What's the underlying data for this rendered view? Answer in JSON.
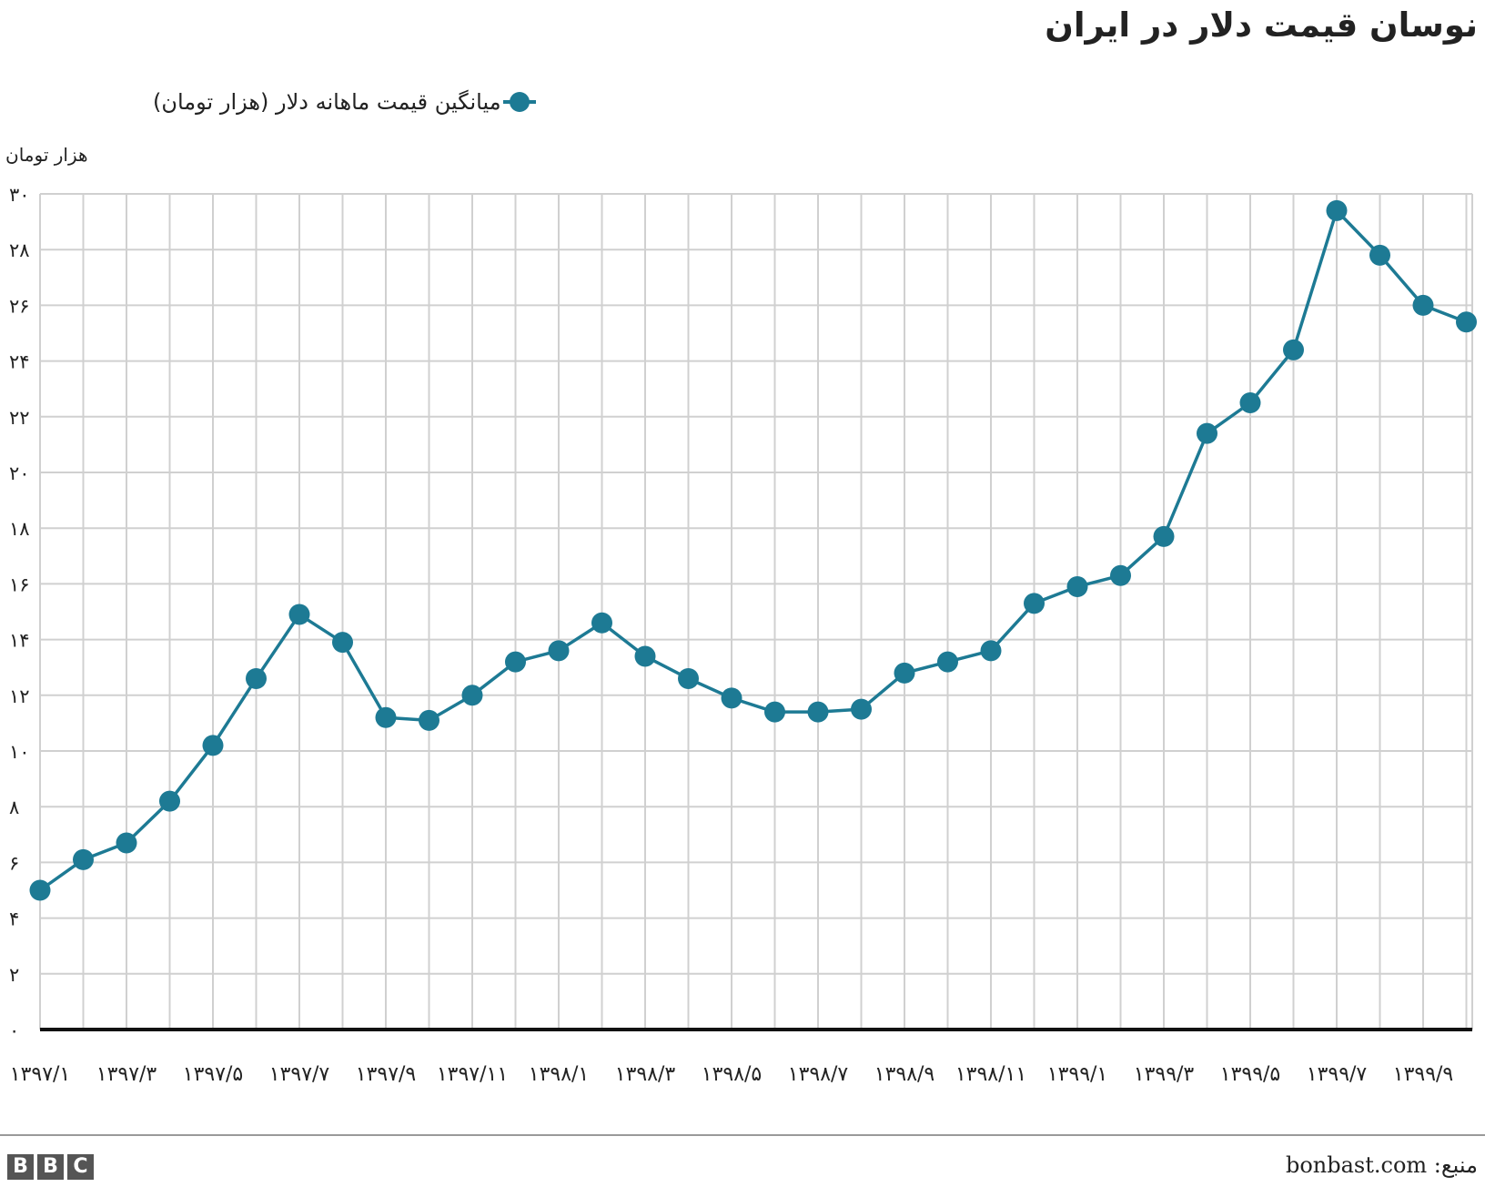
{
  "chart_data": {
    "type": "line",
    "title": "نوسان قیمت دلار در ایران",
    "ylabel": "هزار تومان",
    "xlabel": "",
    "ylim": [
      0,
      30
    ],
    "grid": true,
    "legend_position": "top-left",
    "y_ticks": [
      "۰",
      "۲",
      "۴",
      "۶",
      "۸",
      "۱۰",
      "۱۲",
      "۱۴",
      "۱۶",
      "۱۸",
      "۲۰",
      "۲۲",
      "۲۴",
      "۲۶",
      "۲۸",
      "۳۰"
    ],
    "x_tick_labels": [
      {
        "index": 0,
        "label": "۱۳۹۷/۱"
      },
      {
        "index": 2,
        "label": "۱۳۹۷/۳"
      },
      {
        "index": 4,
        "label": "۱۳۹۷/۵"
      },
      {
        "index": 6,
        "label": "۱۳۹۷/۷"
      },
      {
        "index": 8,
        "label": "۱۳۹۷/۹"
      },
      {
        "index": 10,
        "label": "۱۳۹۷/۱۱"
      },
      {
        "index": 12,
        "label": "۱۳۹۸/۱"
      },
      {
        "index": 14,
        "label": "۱۳۹۸/۳"
      },
      {
        "index": 16,
        "label": "۱۳۹۸/۵"
      },
      {
        "index": 18,
        "label": "۱۳۹۸/۷"
      },
      {
        "index": 20,
        "label": "۱۳۹۸/۹"
      },
      {
        "index": 22,
        "label": "۱۳۹۸/۱۱"
      },
      {
        "index": 24,
        "label": "۱۳۹۹/۱"
      },
      {
        "index": 26,
        "label": "۱۳۹۹/۳"
      },
      {
        "index": 28,
        "label": "۱۳۹۹/۵"
      },
      {
        "index": 30,
        "label": "۱۳۹۹/۷"
      },
      {
        "index": 32,
        "label": "۱۳۹۹/۹"
      }
    ],
    "series": [
      {
        "name": "میانگین قیمت ماهانه دلار (هزار تومان)",
        "color": "#1d7a94",
        "values": [
          5.0,
          6.1,
          6.7,
          8.2,
          10.2,
          12.6,
          14.9,
          13.9,
          11.2,
          11.1,
          12.0,
          13.2,
          13.6,
          14.6,
          13.4,
          12.6,
          11.9,
          11.4,
          11.4,
          11.5,
          12.8,
          13.2,
          13.6,
          15.3,
          15.9,
          16.3,
          17.7,
          21.4,
          22.5,
          24.4,
          29.4,
          27.8,
          26.0,
          25.4
        ]
      }
    ]
  },
  "footer": {
    "source": "منبع: bonbast.com",
    "logo_letters": [
      "B",
      "B",
      "C"
    ]
  }
}
